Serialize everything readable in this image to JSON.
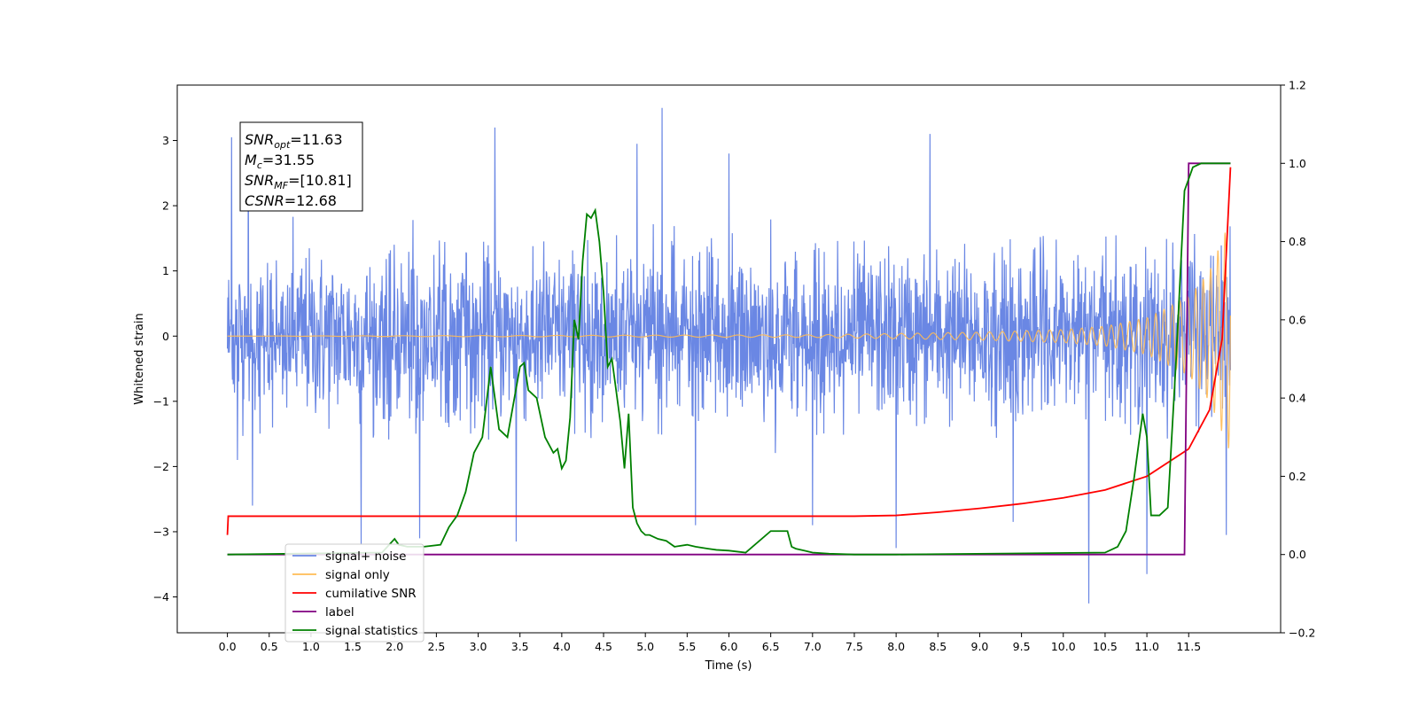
{
  "chart_data": {
    "type": "line",
    "xlabel": "Time (s)",
    "ylabel_left": "Whitened strain",
    "ylabel_right": "",
    "xlim": [
      -0.6,
      12.6
    ],
    "ylim_left": [
      -4.55,
      3.85
    ],
    "ylim_right": [
      -0.2,
      1.2
    ],
    "x_ticks": [
      "0.0",
      "0.5",
      "1.0",
      "1.5",
      "2.0",
      "2.5",
      "3.0",
      "3.5",
      "4.0",
      "4.5",
      "5.0",
      "5.5",
      "6.0",
      "6.5",
      "7.0",
      "7.5",
      "8.0",
      "8.5",
      "9.0",
      "9.5",
      "10.0",
      "10.5",
      "11.0",
      "11.5"
    ],
    "y_ticks_left": [
      "3",
      "2",
      "1",
      "0",
      "−1",
      "−2",
      "−3",
      "−4"
    ],
    "y_ticks_right": [
      "1.2",
      "1.0",
      "0.8",
      "0.6",
      "0.4",
      "0.2",
      "0.0",
      "−0.2"
    ],
    "grid": false,
    "legend_position": "lower-left",
    "annotation": {
      "lines": [
        {
          "name": "SNR",
          "sub": "opt",
          "value": "=11.63"
        },
        {
          "name": "M",
          "sub": "c",
          "value": "=31.55"
        },
        {
          "name": "SNR",
          "sub": "MF",
          "value": "=[10.81]"
        },
        {
          "name": "CSNR",
          "sub": "",
          "value": "=12.68"
        }
      ]
    },
    "series": [
      {
        "name": "signal+ noise",
        "color": "#6a87e4",
        "axis": "left",
        "description": "noise band approx ±1.6 with spikes up to 3.5 and down to −4.1",
        "envelope": {
          "typical_high": 1.6,
          "typical_low": -1.6
        },
        "spikes": [
          [
            0.05,
            3.05
          ],
          [
            0.12,
            -1.9
          ],
          [
            0.25,
            2.9
          ],
          [
            0.3,
            -2.6
          ],
          [
            1.6,
            -3.2
          ],
          [
            2.3,
            -3.1
          ],
          [
            3.2,
            3.2
          ],
          [
            3.45,
            -3.15
          ],
          [
            4.9,
            2.95
          ],
          [
            5.2,
            3.5
          ],
          [
            5.6,
            -2.9
          ],
          [
            6.0,
            2.8
          ],
          [
            7.0,
            -2.9
          ],
          [
            8.0,
            -3.25
          ],
          [
            8.4,
            3.1
          ],
          [
            9.4,
            -2.85
          ],
          [
            10.3,
            -4.1
          ],
          [
            11.0,
            -3.65
          ],
          [
            11.95,
            -3.05
          ]
        ]
      },
      {
        "name": "signal only",
        "color": "#ffbb55",
        "axis": "left",
        "description": "chirp: flat near 0 until ~7 s then oscillation growing to ±1.8 at 12 s",
        "x": [
          0.0,
          7.0,
          8.0,
          9.0,
          10.0,
          10.5,
          11.0,
          11.5,
          11.75,
          12.0
        ],
        "amplitude": [
          0.0,
          0.02,
          0.04,
          0.06,
          0.1,
          0.15,
          0.28,
          0.6,
          1.0,
          1.8
        ]
      },
      {
        "name": "cumilative SNR",
        "color": "#ff0000",
        "axis": "right",
        "x": [
          0.0,
          0.01,
          7.5,
          8.0,
          8.5,
          9.0,
          9.5,
          10.0,
          10.5,
          11.0,
          11.5,
          11.75,
          11.9,
          12.0
        ],
        "y": [
          0.05,
          0.098,
          0.098,
          0.1,
          0.108,
          0.118,
          0.13,
          0.145,
          0.165,
          0.2,
          0.27,
          0.37,
          0.55,
          0.99
        ]
      },
      {
        "name": "label",
        "color": "#800080",
        "axis": "right",
        "x": [
          0.0,
          11.45,
          11.5,
          12.0
        ],
        "y": [
          0.0,
          0.0,
          1.0,
          1.0
        ]
      },
      {
        "name": "signal statistics",
        "color": "#008000",
        "axis": "right",
        "x": [
          0.0,
          1.85,
          2.0,
          2.05,
          2.15,
          2.35,
          2.55,
          2.65,
          2.75,
          2.85,
          2.95,
          3.05,
          3.15,
          3.25,
          3.35,
          3.45,
          3.5,
          3.55,
          3.6,
          3.7,
          3.8,
          3.9,
          3.95,
          4.0,
          4.05,
          4.1,
          4.15,
          4.2,
          4.25,
          4.3,
          4.35,
          4.4,
          4.45,
          4.5,
          4.55,
          4.6,
          4.65,
          4.7,
          4.75,
          4.8,
          4.85,
          4.9,
          4.95,
          5.0,
          5.05,
          5.15,
          5.25,
          5.35,
          5.5,
          5.6,
          5.75,
          5.85,
          6.0,
          6.2,
          6.5,
          6.7,
          6.75,
          6.8,
          6.9,
          7.0,
          7.2,
          7.5,
          8.0,
          10.5,
          10.65,
          10.75,
          10.85,
          10.95,
          11.0,
          11.05,
          11.15,
          11.25,
          11.35,
          11.45,
          11.55,
          11.65,
          11.8,
          12.0
        ],
        "y": [
          0.0,
          0.005,
          0.04,
          0.025,
          0.02,
          0.02,
          0.025,
          0.07,
          0.1,
          0.16,
          0.26,
          0.3,
          0.48,
          0.32,
          0.3,
          0.42,
          0.48,
          0.49,
          0.42,
          0.4,
          0.3,
          0.26,
          0.27,
          0.22,
          0.24,
          0.35,
          0.6,
          0.55,
          0.75,
          0.87,
          0.86,
          0.88,
          0.8,
          0.67,
          0.48,
          0.5,
          0.42,
          0.34,
          0.22,
          0.36,
          0.12,
          0.08,
          0.06,
          0.05,
          0.05,
          0.04,
          0.035,
          0.02,
          0.025,
          0.02,
          0.015,
          0.012,
          0.01,
          0.005,
          0.06,
          0.06,
          0.02,
          0.015,
          0.01,
          0.005,
          0.002,
          0.0,
          0.0,
          0.005,
          0.02,
          0.06,
          0.2,
          0.36,
          0.3,
          0.1,
          0.1,
          0.12,
          0.5,
          0.93,
          0.99,
          1.0,
          1.0,
          1.0
        ]
      }
    ]
  }
}
